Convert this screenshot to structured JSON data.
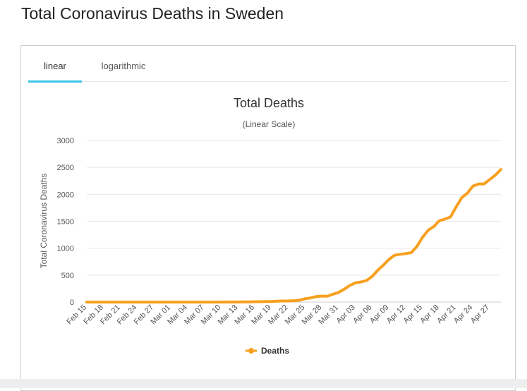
{
  "page": {
    "title": "Total Coronavirus Deaths in Sweden"
  },
  "tabs": {
    "linear_label": "linear",
    "log_label": "logarithmic",
    "active": "linear"
  },
  "colors": {
    "series": "#f7a01f",
    "tab_active": "#3bc4e8",
    "grid": "#e6e6e6"
  },
  "chart_data": {
    "type": "line",
    "title": "Total Deaths",
    "subtitle": "(Linear Scale)",
    "xlabel": "",
    "ylabel": "Total Coronavirus Deaths",
    "ylim": [
      0,
      3000
    ],
    "yticks": [
      0,
      500,
      1000,
      1500,
      2000,
      2500,
      3000
    ],
    "grid": true,
    "legend_position": "bottom-center",
    "x_tick_labels": [
      "Feb 15",
      "Feb 18",
      "Feb 21",
      "Feb 24",
      "Feb 27",
      "Mar 01",
      "Mar 04",
      "Mar 07",
      "Mar 10",
      "Mar 13",
      "Mar 16",
      "Mar 19",
      "Mar 22",
      "Mar 25",
      "Mar 28",
      "Mar 31",
      "Apr 03",
      "Apr 06",
      "Apr 09",
      "Apr 12",
      "Apr 15",
      "Apr 18",
      "Apr 21",
      "Apr 24",
      "Apr 27"
    ],
    "categories": [
      "Feb 15",
      "Feb 16",
      "Feb 17",
      "Feb 18",
      "Feb 19",
      "Feb 20",
      "Feb 21",
      "Feb 22",
      "Feb 23",
      "Feb 24",
      "Feb 25",
      "Feb 26",
      "Feb 27",
      "Feb 28",
      "Feb 29",
      "Mar 01",
      "Mar 02",
      "Mar 03",
      "Mar 04",
      "Mar 05",
      "Mar 06",
      "Mar 07",
      "Mar 08",
      "Mar 09",
      "Mar 10",
      "Mar 11",
      "Mar 12",
      "Mar 13",
      "Mar 14",
      "Mar 15",
      "Mar 16",
      "Mar 17",
      "Mar 18",
      "Mar 19",
      "Mar 20",
      "Mar 21",
      "Mar 22",
      "Mar 23",
      "Mar 24",
      "Mar 25",
      "Mar 26",
      "Mar 27",
      "Mar 28",
      "Mar 29",
      "Mar 30",
      "Mar 31",
      "Apr 01",
      "Apr 02",
      "Apr 03",
      "Apr 04",
      "Apr 05",
      "Apr 06",
      "Apr 07",
      "Apr 08",
      "Apr 09",
      "Apr 10",
      "Apr 11",
      "Apr 12",
      "Apr 13",
      "Apr 14",
      "Apr 15",
      "Apr 16",
      "Apr 17",
      "Apr 18",
      "Apr 19",
      "Apr 20",
      "Apr 21",
      "Apr 22",
      "Apr 23",
      "Apr 24",
      "Apr 25",
      "Apr 26",
      "Apr 27",
      "Apr 28",
      "Apr 29"
    ],
    "series": [
      {
        "name": "Deaths",
        "values": [
          0,
          0,
          0,
          0,
          0,
          0,
          0,
          0,
          0,
          0,
          0,
          0,
          0,
          0,
          0,
          0,
          0,
          0,
          0,
          0,
          0,
          0,
          0,
          0,
          0,
          1,
          1,
          1,
          2,
          3,
          6,
          7,
          10,
          11,
          16,
          20,
          21,
          25,
          36,
          62,
          77,
          102,
          110,
          110,
          146,
          180,
          239,
          308,
          358,
          373,
          401,
          477,
          591,
          687,
          793,
          870,
          887,
          899,
          919,
          1033,
          1203,
          1333,
          1400,
          1511,
          1540,
          1580,
          1765,
          1937,
          2021,
          2152,
          2192,
          2194,
          2274,
          2355,
          2462
        ]
      }
    ]
  }
}
